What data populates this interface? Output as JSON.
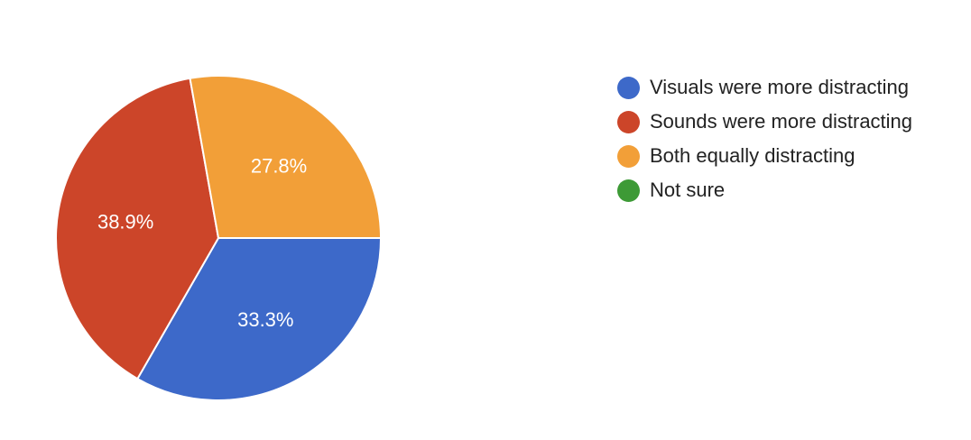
{
  "chart_data": {
    "type": "pie",
    "title": "",
    "legend_position": "right",
    "slices": [
      {
        "label": "Visuals were more distracting",
        "value": 33.3,
        "display": "33.3%",
        "color": "#3d69c9"
      },
      {
        "label": "Sounds were more distracting",
        "value": 38.9,
        "display": "38.9%",
        "color": "#cc4529"
      },
      {
        "label": "Both equally distracting",
        "value": 27.8,
        "display": "27.8%",
        "color": "#f29f38"
      },
      {
        "label": "Not sure",
        "value": 0,
        "display": "",
        "color": "#3d9a36"
      }
    ]
  }
}
